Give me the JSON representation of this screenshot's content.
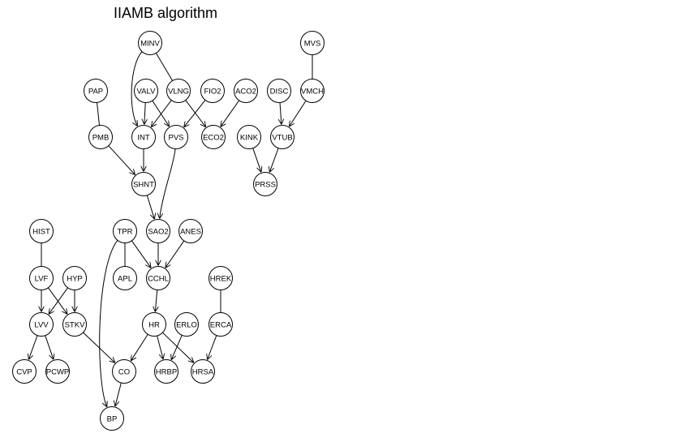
{
  "title": "IIAMB algorithm",
  "nodes": [
    "MINV",
    "MVS",
    "PAP",
    "VALV",
    "VLNG",
    "FIO2",
    "ACO2",
    "DISC",
    "VMCH",
    "PMB",
    "INT",
    "PVS",
    "ECO2",
    "KINK",
    "VTUB",
    "SHNT",
    "PRSS",
    "HIST",
    "TPR",
    "SAO2",
    "ANES",
    "LVF",
    "HYP",
    "APL",
    "CCHL",
    "HREK",
    "LVV",
    "STKV",
    "HR",
    "ERLO",
    "ERCA",
    "CVP",
    "PCWP",
    "CO",
    "HRBP",
    "HRSA",
    "BP"
  ],
  "edges": [
    {
      "from": "MINV",
      "to": "INT",
      "directed": true
    },
    {
      "from": "MINV",
      "to": "VLNG",
      "directed": false
    },
    {
      "from": "MVS",
      "to": "VMCH",
      "directed": false
    },
    {
      "from": "PAP",
      "to": "PMB",
      "directed": false
    },
    {
      "from": "VALV",
      "to": "INT",
      "directed": true
    },
    {
      "from": "VALV",
      "to": "PVS",
      "directed": true
    },
    {
      "from": "VLNG",
      "to": "INT",
      "directed": true
    },
    {
      "from": "VLNG",
      "to": "ECO2",
      "directed": true
    },
    {
      "from": "FIO2",
      "to": "PVS",
      "directed": true
    },
    {
      "from": "ACO2",
      "to": "ECO2",
      "directed": true
    },
    {
      "from": "DISC",
      "to": "VTUB",
      "directed": true
    },
    {
      "from": "VMCH",
      "to": "VTUB",
      "directed": true
    },
    {
      "from": "PMB",
      "to": "SHNT",
      "directed": true
    },
    {
      "from": "INT",
      "to": "SHNT",
      "directed": true
    },
    {
      "from": "KINK",
      "to": "PRSS",
      "directed": true
    },
    {
      "from": "VTUB",
      "to": "PRSS",
      "directed": true
    },
    {
      "from": "SHNT",
      "to": "SAO2",
      "directed": true
    },
    {
      "from": "PVS",
      "to": "SAO2",
      "directed": true
    },
    {
      "from": "HIST",
      "to": "LVF",
      "directed": false
    },
    {
      "from": "TPR",
      "to": "APL",
      "directed": false
    },
    {
      "from": "TPR",
      "to": "CCHL",
      "directed": true
    },
    {
      "from": "TPR",
      "to": "BP",
      "directed": true
    },
    {
      "from": "SAO2",
      "to": "CCHL",
      "directed": true
    },
    {
      "from": "ANES",
      "to": "CCHL",
      "directed": true
    },
    {
      "from": "LVF",
      "to": "LVV",
      "directed": true
    },
    {
      "from": "LVF",
      "to": "STKV",
      "directed": true
    },
    {
      "from": "HYP",
      "to": "LVV",
      "directed": true
    },
    {
      "from": "HYP",
      "to": "STKV",
      "directed": true
    },
    {
      "from": "CCHL",
      "to": "HR",
      "directed": true
    },
    {
      "from": "HREK",
      "to": "ERCA",
      "directed": false
    },
    {
      "from": "LVV",
      "to": "CVP",
      "directed": true
    },
    {
      "from": "LVV",
      "to": "PCWP",
      "directed": true
    },
    {
      "from": "STKV",
      "to": "CO",
      "directed": true
    },
    {
      "from": "HR",
      "to": "CO",
      "directed": true
    },
    {
      "from": "HR",
      "to": "HRBP",
      "directed": true
    },
    {
      "from": "HR",
      "to": "HRSA",
      "directed": true
    },
    {
      "from": "ERLO",
      "to": "HRBP",
      "directed": true
    },
    {
      "from": "ERCA",
      "to": "HRSA",
      "directed": true
    },
    {
      "from": "CO",
      "to": "BP",
      "directed": true
    }
  ]
}
